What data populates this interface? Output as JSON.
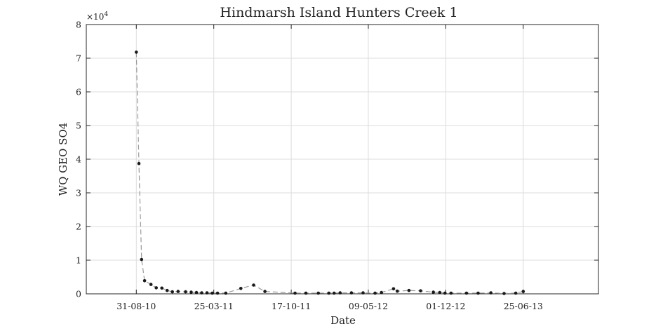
{
  "chart_data": {
    "type": "line",
    "title": "Hindmarsh Island Hunters Creek 1",
    "xlabel": "Date",
    "ylabel": "WQ GEO SO4",
    "y_exponent_label": "×10",
    "y_exponent_power": "4",
    "xlim": [
      "2010-04-20",
      "2014-01-11"
    ],
    "ylim": [
      0,
      80000
    ],
    "grid": true,
    "legend": "none",
    "x_ticks": [
      {
        "date": "2010-08-31",
        "label": "31-08-10"
      },
      {
        "date": "2011-03-25",
        "label": "25-03-11"
      },
      {
        "date": "2011-10-17",
        "label": "17-10-11"
      },
      {
        "date": "2012-05-09",
        "label": "09-05-12"
      },
      {
        "date": "2012-12-01",
        "label": "01-12-12"
      },
      {
        "date": "2013-06-25",
        "label": "25-06-13"
      }
    ],
    "y_ticks": [
      {
        "value": 0,
        "label": "0"
      },
      {
        "value": 10000,
        "label": "1"
      },
      {
        "value": 20000,
        "label": "2"
      },
      {
        "value": 30000,
        "label": "3"
      },
      {
        "value": 40000,
        "label": "4"
      },
      {
        "value": 50000,
        "label": "5"
      },
      {
        "value": 60000,
        "label": "6"
      },
      {
        "value": 70000,
        "label": "7"
      },
      {
        "value": 80000,
        "label": "8"
      }
    ],
    "series": [
      {
        "color": "#1a1a1a",
        "line_color": "#9a9a9a",
        "x": [
          "2010-08-31",
          "2010-09-07",
          "2010-09-14",
          "2010-09-22",
          "2010-10-09",
          "2010-10-23",
          "2010-11-07",
          "2010-11-21",
          "2010-12-05",
          "2010-12-20",
          "2011-01-09",
          "2011-01-24",
          "2011-02-07",
          "2011-02-21",
          "2011-03-07",
          "2011-03-21",
          "2011-04-04",
          "2011-04-26",
          "2011-06-05",
          "2011-07-09",
          "2011-08-08",
          "2011-10-27",
          "2011-11-25",
          "2011-12-28",
          "2012-01-25",
          "2012-02-08",
          "2012-02-24",
          "2012-03-25",
          "2012-04-25",
          "2012-05-27",
          "2012-06-13",
          "2012-07-15",
          "2012-07-25",
          "2012-08-25",
          "2012-09-25",
          "2012-10-29",
          "2012-11-15",
          "2012-11-29",
          "2012-12-15",
          "2013-01-25",
          "2013-02-25",
          "2013-03-31",
          "2013-05-05",
          "2013-06-05",
          "2013-06-25"
        ],
        "y": [
          71800,
          38700,
          10200,
          3900,
          2800,
          1800,
          1700,
          1000,
          600,
          700,
          600,
          500,
          400,
          300,
          300,
          200,
          200,
          200,
          1600,
          2600,
          700,
          200,
          200,
          200,
          200,
          200,
          300,
          300,
          300,
          200,
          400,
          1500,
          800,
          1000,
          900,
          500,
          400,
          200,
          200,
          200,
          200,
          300,
          100,
          200,
          700
        ]
      }
    ]
  }
}
